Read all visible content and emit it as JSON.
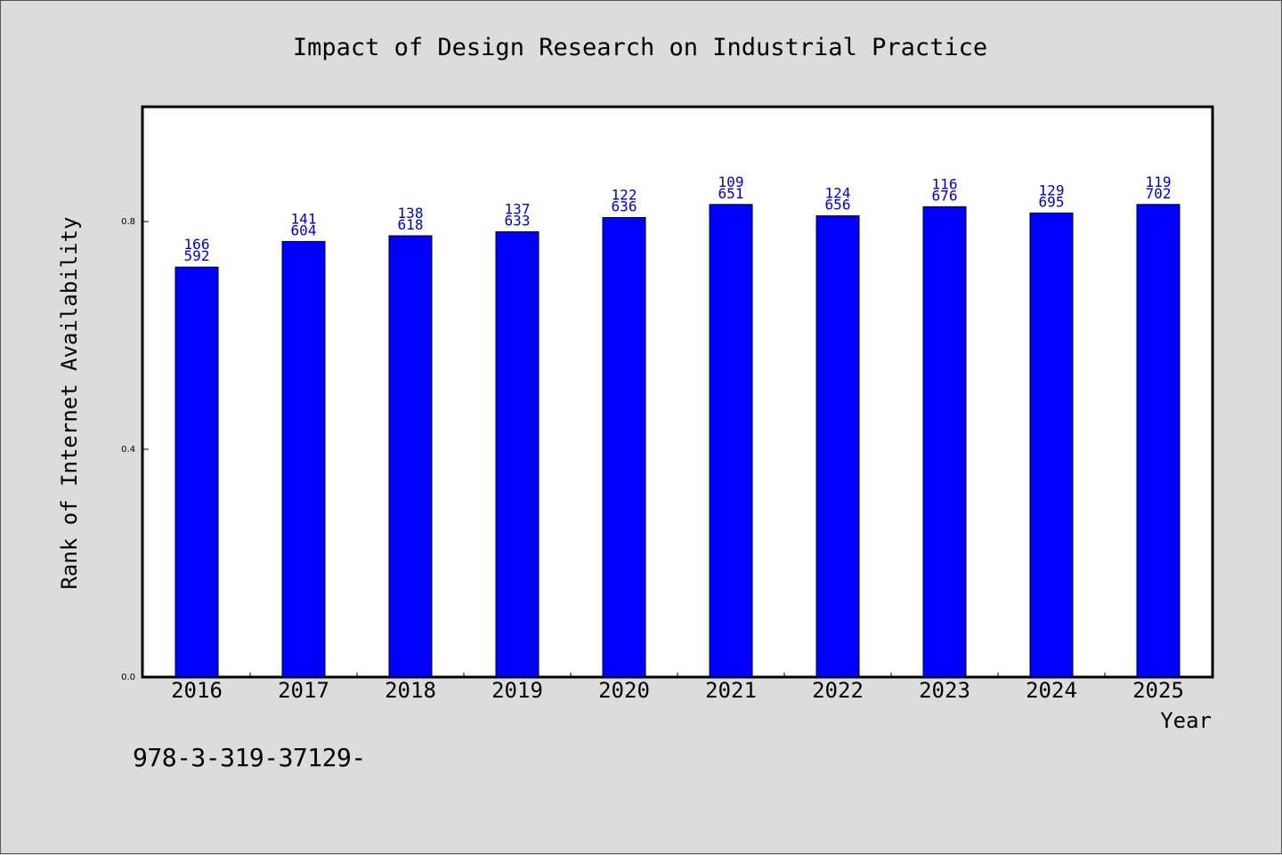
{
  "chart_data": {
    "type": "bar",
    "title": "Impact of Design Research on Industrial Practice",
    "xlabel": "Year",
    "ylabel": "Rank of Internet Availability",
    "categories": [
      "2016",
      "2017",
      "2018",
      "2019",
      "2020",
      "2021",
      "2022",
      "2023",
      "2024",
      "2025"
    ],
    "series": [
      {
        "values": [
          0.72,
          0.765,
          0.775,
          0.782,
          0.807,
          0.83,
          0.81,
          0.826,
          0.815,
          0.83
        ],
        "labels_top": [
          "166",
          "141",
          "138",
          "137",
          "122",
          "109",
          "124",
          "116",
          "129",
          "119"
        ],
        "labels_bottom": [
          "592",
          "604",
          "618",
          "633",
          "636",
          "651",
          "656",
          "676",
          "695",
          "702"
        ]
      }
    ],
    "ylim": [
      0,
      1.0
    ],
    "yticks": [
      "0.0",
      "0.4",
      "0.8"
    ],
    "ytick_values": [
      0.0,
      0.4,
      0.8
    ],
    "grid": false,
    "colors": {
      "bar": "#0000ff",
      "label": "#0000cc",
      "background": "#dcdcdc",
      "plot": "#ffffff"
    }
  },
  "footer": {
    "code": "978-3-319-37129-"
  }
}
